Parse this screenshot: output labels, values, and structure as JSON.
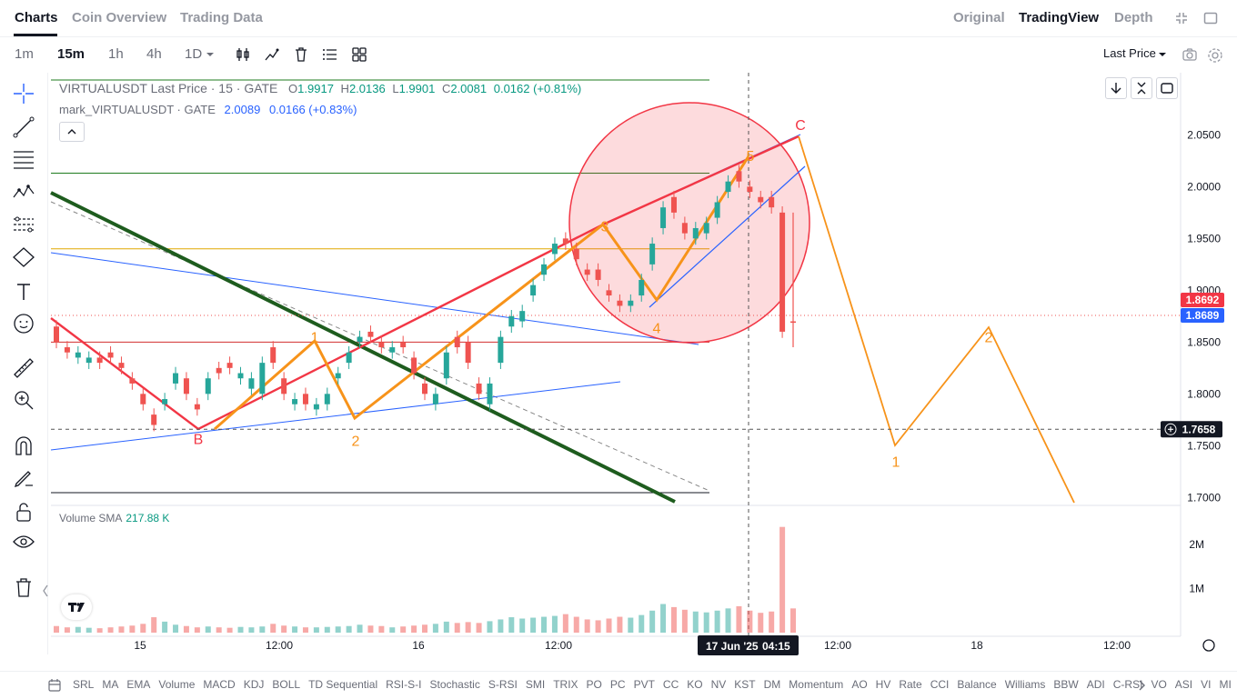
{
  "nav": {
    "tabs": [
      "Charts",
      "Coin Overview",
      "Trading Data"
    ],
    "right_tabs": [
      "Original",
      "TradingView",
      "Depth"
    ],
    "active_right": "TradingView"
  },
  "toolbar": {
    "timeframes": [
      "1m",
      "15m",
      "1h",
      "4h",
      "1D"
    ],
    "active_timeframe": "15m",
    "price_mode": "Last Price"
  },
  "legend": {
    "symbol": "VIRTUALUSDT Last Price · 15 · GATE",
    "open_label": "O",
    "open": "1.9917",
    "high_label": "H",
    "high": "2.0136",
    "low_label": "L",
    "low": "1.9901",
    "close_label": "C",
    "close": "2.0081",
    "change": "0.0162 (+0.81%)",
    "mark_symbol": "mark_VIRTUALUSDT · GATE",
    "mark_value": "2.0089",
    "mark_change": "0.0166 (+0.83%)"
  },
  "volume": {
    "label": "Volume SMA",
    "value": "217.88 K"
  },
  "crosshair": {
    "time_label": "17 Jun '25",
    "time_value": "04:15",
    "price_label": "1.7658"
  },
  "price_tags": {
    "last_price": "1.8692",
    "mark_price": "1.8689"
  },
  "colors": {
    "up": "#26a69a",
    "down": "#ef5350",
    "orange": "#f7931a",
    "red_line": "#f23645",
    "green_line": "#1e5c1e",
    "blue_line": "#2962ff"
  },
  "chart_data": {
    "type": "candlestick",
    "y_axis": {
      "ticks": [
        2.05,
        2.0,
        1.95,
        1.9,
        1.85,
        1.8,
        1.75,
        1.7
      ],
      "tick_labels": [
        "2.0500",
        "2.0000",
        "1.9500",
        "1.9000",
        "1.8500",
        "1.8000",
        "1.7500",
        "1.7000"
      ],
      "range": [
        1.695,
        2.11
      ]
    },
    "x_axis": {
      "tick_labels": [
        "15",
        "12:00",
        "16",
        "12:00",
        "17 Jun '25",
        "12:00",
        "18",
        "12:00"
      ]
    },
    "volume_axis": {
      "tick_labels": [
        "2M",
        "1M"
      ]
    },
    "price_series": [
      [
        1.865,
        1.85
      ],
      [
        1.845,
        1.84
      ],
      [
        1.835,
        1.84
      ],
      [
        1.83,
        1.835
      ],
      [
        1.835,
        1.83
      ],
      [
        1.84,
        1.835
      ],
      [
        1.83,
        1.825
      ],
      [
        1.815,
        1.81
      ],
      [
        1.8,
        1.79
      ],
      [
        1.78,
        1.77
      ],
      [
        1.79,
        1.795
      ],
      [
        1.81,
        1.82
      ],
      [
        1.815,
        1.8
      ],
      [
        1.79,
        1.785
      ],
      [
        1.8,
        1.815
      ],
      [
        1.825,
        1.82
      ],
      [
        1.83,
        1.825
      ],
      [
        1.815,
        1.82
      ],
      [
        1.805,
        1.815
      ],
      [
        1.8,
        1.83
      ],
      [
        1.845,
        1.83
      ],
      [
        1.815,
        1.8
      ],
      [
        1.79,
        1.795
      ],
      [
        1.8,
        1.79
      ],
      [
        1.785,
        1.79
      ],
      [
        1.79,
        1.8
      ],
      [
        1.815,
        1.82
      ],
      [
        1.83,
        1.84
      ],
      [
        1.85,
        1.855
      ],
      [
        1.86,
        1.855
      ],
      [
        1.85,
        1.845
      ],
      [
        1.84,
        1.845
      ],
      [
        1.85,
        1.845
      ],
      [
        1.835,
        1.82
      ],
      [
        1.81,
        1.8
      ],
      [
        1.79,
        1.8
      ],
      [
        1.815,
        1.84
      ],
      [
        1.855,
        1.845
      ],
      [
        1.85,
        1.83
      ],
      [
        1.81,
        1.8
      ],
      [
        1.79,
        1.81
      ],
      [
        1.83,
        1.855
      ],
      [
        1.865,
        1.875
      ],
      [
        1.87,
        1.88
      ],
      [
        1.895,
        1.905
      ],
      [
        1.915,
        1.925
      ],
      [
        1.935,
        1.945
      ],
      [
        1.95,
        1.945
      ],
      [
        1.94,
        1.93
      ],
      [
        1.92,
        1.915
      ],
      [
        1.92,
        1.91
      ],
      [
        1.9,
        1.895
      ],
      [
        1.89,
        1.885
      ],
      [
        1.885,
        1.89
      ],
      [
        1.895,
        1.91
      ],
      [
        1.925,
        1.945
      ],
      [
        1.96,
        1.98
      ],
      [
        1.99,
        1.975
      ],
      [
        1.965,
        1.955
      ],
      [
        1.95,
        1.96
      ],
      [
        1.955,
        1.965
      ],
      [
        1.97,
        1.985
      ],
      [
        1.995,
        2.005
      ],
      [
        2.015,
        2.005
      ],
      [
        2.0,
        1.995
      ],
      [
        1.99,
        1.985
      ],
      [
        1.99,
        1.98
      ],
      [
        1.975,
        1.86
      ],
      [
        1.87,
        1.869
      ]
    ],
    "volume_series": [
      0.15,
      0.12,
      0.13,
      0.11,
      0.1,
      0.12,
      0.14,
      0.16,
      0.2,
      0.35,
      0.25,
      0.18,
      0.15,
      0.12,
      0.14,
      0.12,
      0.11,
      0.13,
      0.12,
      0.14,
      0.2,
      0.16,
      0.14,
      0.12,
      0.12,
      0.13,
      0.14,
      0.15,
      0.18,
      0.16,
      0.15,
      0.12,
      0.14,
      0.16,
      0.18,
      0.2,
      0.25,
      0.22,
      0.24,
      0.22,
      0.26,
      0.3,
      0.35,
      0.32,
      0.34,
      0.36,
      0.38,
      0.42,
      0.36,
      0.3,
      0.28,
      0.32,
      0.36,
      0.34,
      0.4,
      0.5,
      0.65,
      0.58,
      0.52,
      0.48,
      0.46,
      0.5,
      0.55,
      0.6,
      0.5,
      0.45,
      0.48,
      2.4,
      0.55
    ],
    "wave_labels": [
      {
        "text": "B",
        "price": 1.757
      },
      {
        "text": "1",
        "price": 1.855
      },
      {
        "text": "2",
        "price": 1.755
      },
      {
        "text": "3",
        "price": 1.962
      },
      {
        "text": "4",
        "price": 1.864
      },
      {
        "text": "5",
        "price": 2.03
      },
      {
        "text": "C",
        "price": 2.06
      },
      {
        "text": "1",
        "price": 1.735
      },
      {
        "text": "2",
        "price": 1.855
      }
    ],
    "horizontal_levels": [
      2.013,
      1.94,
      1.85
    ],
    "crosshair_price": 1.7658
  }
}
